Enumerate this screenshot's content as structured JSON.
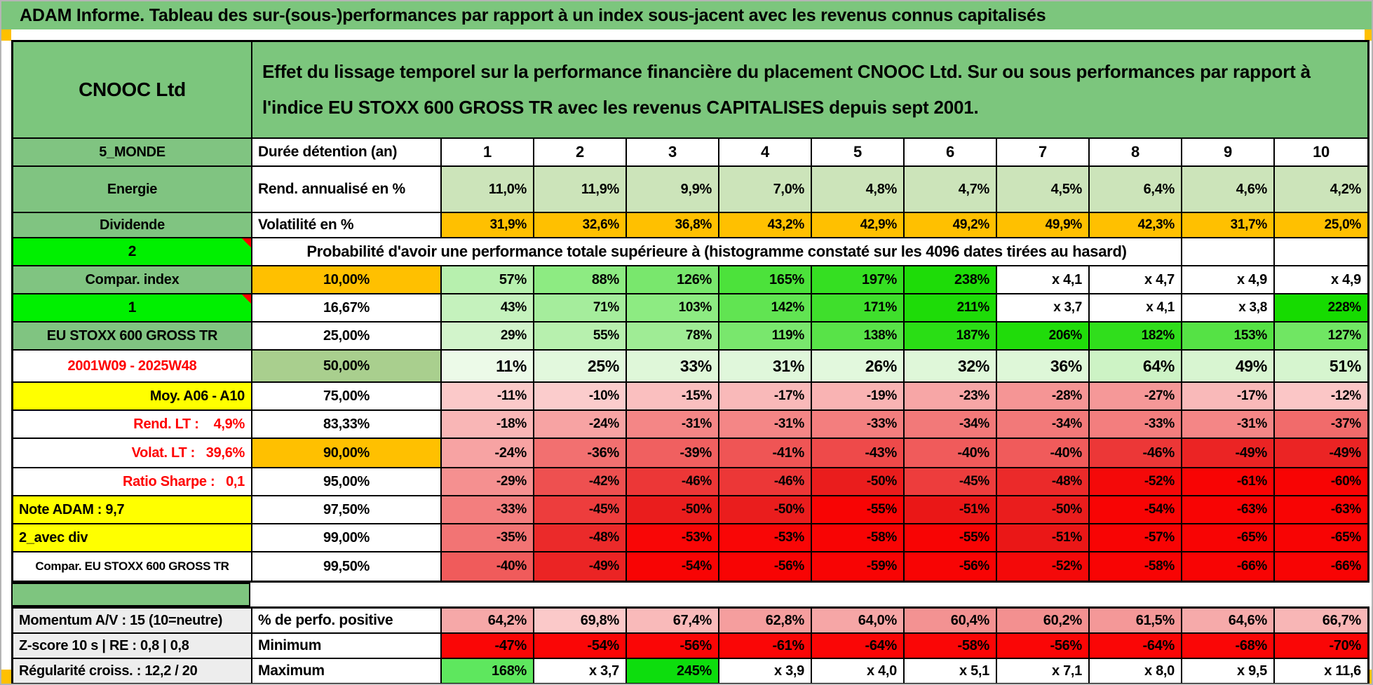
{
  "title": "ADAM Informe. Tableau des sur-(sous-)performances par rapport à un index sous-jacent avec les revenus connus capitalisés",
  "palette": {
    "header_green": "#7cc67d",
    "label_green": "#80c481",
    "bright_green": "#00f000",
    "accent_orange": "#ffc000",
    "accent_yellow": "#ffff00",
    "mid_green_50pct": "#a9cf8e",
    "annualized_green": "#cce4ba",
    "negative_red": "#f80404",
    "red_text": "#fe0000"
  },
  "sheet": {
    "company": "CNOOC Ltd",
    "subtitle": "Effet du lissage temporel sur la performance financière du placement CNOOC Ltd. Sur ou sous performances par rapport à l'indice EU STOXX 600 GROSS TR avec les revenus CAPITALISES depuis sept 2001.",
    "duration": {
      "label": "5_MONDE",
      "header": "Durée détention (an)",
      "values": [
        "1",
        "2",
        "3",
        "4",
        "5",
        "6",
        "7",
        "8",
        "9",
        "10"
      ]
    },
    "annualized": {
      "label": "Energie",
      "header": "Rend. annualisé en %",
      "cell_bg": "#cce4ba",
      "values": [
        "11,0%",
        "11,9%",
        "9,9%",
        "7,0%",
        "4,8%",
        "4,7%",
        "4,5%",
        "6,4%",
        "4,6%",
        "4,2%"
      ]
    },
    "volatility": {
      "label": "Dividende",
      "header": "Volatilité en %",
      "cell_bg": "#ffc000",
      "values": [
        "31,9%",
        "32,6%",
        "36,8%",
        "43,2%",
        "42,9%",
        "49,2%",
        "49,9%",
        "42,3%",
        "31,7%",
        "25,0%"
      ]
    },
    "probability_banner": {
      "label": "2",
      "text": "Probabilité d'avoir une performance totale supérieure à (histogramme constaté sur les 4096 dates tirées au hasard)"
    },
    "probability_rows": [
      {
        "label": "Compar. index",
        "label_style": "green",
        "header": "10,00%",
        "header_style": "orange",
        "bold": true,
        "values": [
          "57%",
          "88%",
          "126%",
          "165%",
          "197%",
          "238%",
          "x 4,1",
          "x 4,7",
          "x 4,9",
          "x 4,9"
        ],
        "colors": [
          "#b7f0ae",
          "#8deb82",
          "#79e76d",
          "#4ce23b",
          "#35df22",
          "#1edc08",
          "#ffffff",
          "#ffffff",
          "#ffffff",
          "#ffffff"
        ]
      },
      {
        "label": "1",
        "label_style": "bright",
        "header": "16,67%",
        "header_style": "white",
        "values": [
          "43%",
          "71%",
          "103%",
          "142%",
          "171%",
          "211%",
          "x 3,7",
          "x 4,1",
          "x 3,8",
          "228%"
        ],
        "colors": [
          "#c5f2bd",
          "#a5ed9c",
          "#8deb82",
          "#61e452",
          "#3fdf2c",
          "#1edc08",
          "#ffffff",
          "#ffffff",
          "#ffffff",
          "#16db00"
        ]
      },
      {
        "label": "EU STOXX 600 GROSS TR",
        "label_style": "green-small",
        "header": "25,00%",
        "header_style": "white",
        "values": [
          "29%",
          "55%",
          "78%",
          "119%",
          "138%",
          "187%",
          "206%",
          "182%",
          "153%",
          "127%"
        ],
        "colors": [
          "#d2f4cb",
          "#b7f0ae",
          "#9fec95",
          "#79e76d",
          "#58e348",
          "#2ade15",
          "#20dc0a",
          "#30de1c",
          "#55e245",
          "#70e663"
        ]
      },
      {
        "label": "2001W09 - 2025W48",
        "label_style": "daterange",
        "header": "50,00%",
        "header_style": "medgreen",
        "bold": true,
        "big": true,
        "values": [
          "11%",
          "25%",
          "33%",
          "31%",
          "26%",
          "32%",
          "36%",
          "64%",
          "49%",
          "51%"
        ],
        "colors": [
          "#ecfae8",
          "#e2f8dd",
          "#dff7d9",
          "#e0f7db",
          "#e2f8dd",
          "#dff7d9",
          "#def7d8",
          "#cdf3c5",
          "#d8f5d1",
          "#d6f5cf"
        ]
      },
      {
        "label": "Moy. A06 - A10",
        "label_style": "yellow-right",
        "header": "75,00%",
        "header_style": "white",
        "values": [
          "-11%",
          "-10%",
          "-15%",
          "-17%",
          "-19%",
          "-23%",
          "-28%",
          "-27%",
          "-17%",
          "-12%"
        ],
        "colors": [
          "#fbc9c9",
          "#fbcccc",
          "#fabfbf",
          "#f9b9b9",
          "#f9b3b3",
          "#f7a6a6",
          "#f59595",
          "#f59898",
          "#f9b9b9",
          "#fbc6c6"
        ]
      },
      {
        "label": "Rend. LT :    4,9%",
        "label_style": "red-right",
        "header": "83,33%",
        "header_style": "white",
        "values": [
          "-18%",
          "-24%",
          "-31%",
          "-31%",
          "-33%",
          "-34%",
          "-34%",
          "-33%",
          "-31%",
          "-37%"
        ],
        "colors": [
          "#f9b6b6",
          "#f7a3a3",
          "#f48686",
          "#f48686",
          "#f37e7e",
          "#f27979",
          "#f27979",
          "#f37e7e",
          "#f48686",
          "#f16b6b"
        ]
      },
      {
        "label": "Volat. LT :   39,6%",
        "label_style": "red-right",
        "header": "90,00%",
        "header_style": "orange",
        "bold": true,
        "values": [
          "-24%",
          "-36%",
          "-39%",
          "-41%",
          "-43%",
          "-40%",
          "-40%",
          "-46%",
          "-49%",
          "-49%"
        ],
        "colors": [
          "#f7a3a3",
          "#f27070",
          "#f06060",
          "#ef5555",
          "#ee4a4a",
          "#f05b5b",
          "#f05b5b",
          "#ec3737",
          "#eb2424",
          "#eb2424"
        ]
      },
      {
        "label": "Ratio Sharpe :   0,1",
        "label_style": "red-right",
        "header": "95,00%",
        "header_style": "white",
        "values": [
          "-29%",
          "-42%",
          "-46%",
          "-46%",
          "-50%",
          "-45%",
          "-48%",
          "-52%",
          "-61%",
          "-60%"
        ],
        "colors": [
          "#f59090",
          "#ee5050",
          "#ec3737",
          "#ec3737",
          "#ea1d1d",
          "#ed3d3d",
          "#eb2a2a",
          "#f40909",
          "#f80404",
          "#f80404"
        ]
      },
      {
        "label": "Note ADAM : 9,7",
        "label_style": "yellow-left",
        "header": "97,50%",
        "header_style": "white",
        "values": [
          "-33%",
          "-45%",
          "-50%",
          "-50%",
          "-55%",
          "-51%",
          "-50%",
          "-54%",
          "-63%",
          "-63%"
        ],
        "colors": [
          "#f37e7e",
          "#ed3d3d",
          "#ea1d1d",
          "#ea1d1d",
          "#f80404",
          "#ea1717",
          "#ea1d1d",
          "#f80404",
          "#f80404",
          "#f80404"
        ]
      },
      {
        "label": "2_avec div",
        "label_style": "yellow-left",
        "header": "99,00%",
        "header_style": "white",
        "values": [
          "-35%",
          "-48%",
          "-53%",
          "-53%",
          "-58%",
          "-55%",
          "-51%",
          "-57%",
          "-65%",
          "-65%"
        ],
        "colors": [
          "#f27474",
          "#eb2a2a",
          "#f90606",
          "#f90606",
          "#f80404",
          "#f80404",
          "#ea1717",
          "#f80404",
          "#f80404",
          "#f80404"
        ]
      },
      {
        "label": "Compar. EU STOXX 600 GROSS TR",
        "label_style": "white-small",
        "header": "99,50%",
        "header_style": "white",
        "values": [
          "-40%",
          "-49%",
          "-54%",
          "-56%",
          "-59%",
          "-56%",
          "-52%",
          "-58%",
          "-66%",
          "-66%"
        ],
        "colors": [
          "#f05b5b",
          "#eb2424",
          "#f80404",
          "#f80404",
          "#f80404",
          "#f80404",
          "#f40909",
          "#f80404",
          "#f80404",
          "#f80404"
        ]
      }
    ]
  },
  "bottom": {
    "rows": [
      {
        "label": "Momentum A/V : 15 (10=neutre)",
        "header": "% de perfo. positive",
        "values": [
          "64,2%",
          "69,8%",
          "67,4%",
          "62,8%",
          "64,0%",
          "60,4%",
          "60,2%",
          "61,5%",
          "64,6%",
          "66,7%"
        ],
        "colors": [
          "#f6a8a8",
          "#fbc9c9",
          "#f9baba",
          "#f59e9e",
          "#f6a6a6",
          "#f39292",
          "#f39090",
          "#f49898",
          "#f6aaaa",
          "#f8b6b6"
        ]
      },
      {
        "label": "Z-score 10 s | RE : 0,8 | 0,8",
        "header": "Minimum",
        "values": [
          "-47%",
          "-54%",
          "-56%",
          "-61%",
          "-64%",
          "-58%",
          "-56%",
          "-64%",
          "-68%",
          "-70%"
        ],
        "colors": [
          "#fa0606",
          "#fa0606",
          "#fa0606",
          "#fa0606",
          "#fa0606",
          "#fa0606",
          "#fa0606",
          "#fa0606",
          "#fa0606",
          "#fa0606"
        ]
      },
      {
        "label": "Régularité croiss. : 12,2 / 20",
        "header": "Maximum",
        "values": [
          "168%",
          "x 3,7",
          "245%",
          "x 3,9",
          "x 4,0",
          "x 5,1",
          "x 7,1",
          "x 8,0",
          "x 9,5",
          "x 11,6"
        ],
        "colors": [
          "#5ee75e",
          "#ffffff",
          "#0ddd0d",
          "#ffffff",
          "#ffffff",
          "#ffffff",
          "#ffffff",
          "#ffffff",
          "#ffffff",
          "#ffffff"
        ]
      }
    ]
  }
}
